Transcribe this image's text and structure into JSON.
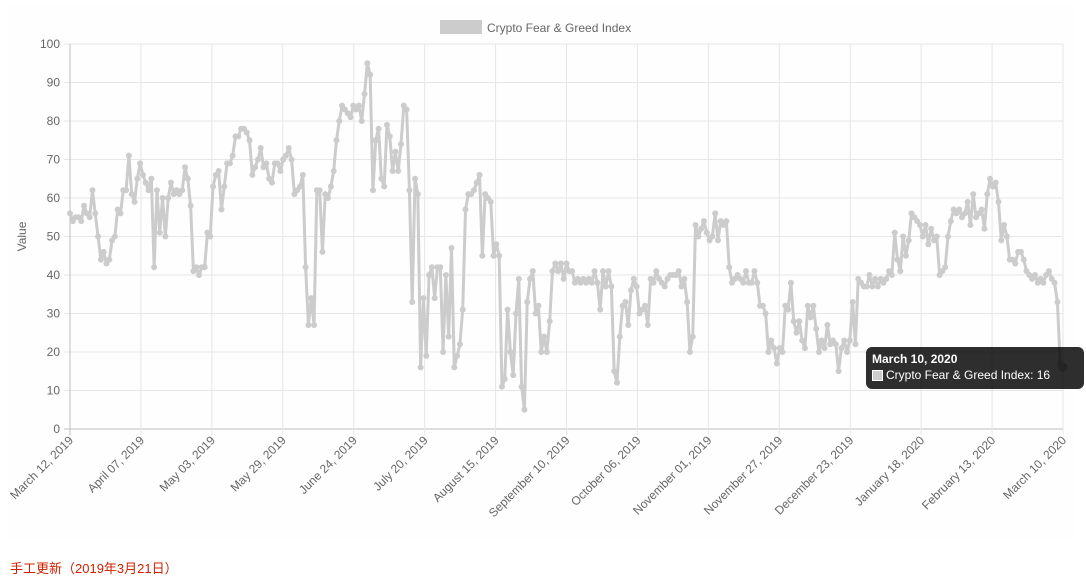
{
  "chart_data": {
    "type": "line",
    "title": "",
    "ylabel": "Value",
    "xlabel": "",
    "ylim": [
      0,
      100
    ],
    "y_ticks": [
      0,
      10,
      20,
      30,
      40,
      50,
      60,
      70,
      80,
      90,
      100
    ],
    "x_tick_labels": [
      "March 12, 2019",
      "April 07, 2019",
      "May 03, 2019",
      "May 29, 2019",
      "June 24, 2019",
      "July 20, 2019",
      "August 15, 2019",
      "September 10, 2019",
      "October 06, 2019",
      "November 01, 2019",
      "November 27, 2019",
      "December 23, 2019",
      "January 18, 2020",
      "February 13, 2020",
      "March 10, 2020"
    ],
    "grid": true,
    "legend_position": "top",
    "series": [
      {
        "name": "Crypto Fear & Greed Index",
        "color": "#cccccc",
        "values": [
          56,
          54,
          55,
          55,
          54,
          58,
          56,
          55,
          62,
          56,
          50,
          44,
          46,
          43,
          44,
          49,
          50,
          57,
          56,
          62,
          62,
          71,
          61,
          59,
          65,
          69,
          66,
          64,
          62,
          65,
          42,
          62,
          51,
          60,
          50,
          60,
          64,
          61,
          62,
          61,
          62,
          68,
          65,
          58,
          41,
          42,
          40,
          42,
          42,
          51,
          50,
          63,
          66,
          67,
          57,
          63,
          69,
          69,
          71,
          76,
          76,
          78,
          78,
          77,
          75,
          66,
          68,
          70,
          73,
          68,
          69,
          65,
          64,
          69,
          69,
          67,
          70,
          71,
          73,
          70,
          61,
          62,
          63,
          66,
          42,
          27,
          34,
          27,
          62,
          62,
          46,
          61,
          60,
          63,
          67,
          75,
          80,
          84,
          83,
          82,
          81,
          84,
          83,
          84,
          80,
          87,
          95,
          92,
          62,
          75,
          78,
          65,
          63,
          79,
          76,
          67,
          72,
          67,
          74,
          84,
          83,
          62,
          33,
          65,
          61,
          16,
          34,
          19,
          40,
          42,
          34,
          42,
          42,
          20,
          40,
          24,
          47,
          16,
          19,
          22,
          31,
          57,
          61,
          61,
          62,
          64,
          66,
          45,
          61,
          60,
          59,
          45,
          48,
          45,
          11,
          13,
          31,
          20,
          14,
          30,
          39,
          11,
          5,
          33,
          39,
          41,
          30,
          32,
          20,
          24,
          20,
          28,
          41,
          43,
          41,
          43,
          39,
          43,
          41,
          41,
          38,
          39,
          38,
          39,
          38,
          39,
          38,
          41,
          38,
          31,
          41,
          37,
          41,
          37,
          15,
          12,
          24,
          32,
          33,
          27,
          36,
          39,
          37,
          30,
          31,
          32,
          27,
          39,
          38,
          41,
          39,
          38,
          37,
          39,
          40,
          40,
          40,
          41,
          37,
          39,
          33,
          20,
          24,
          53,
          50,
          52,
          54,
          51,
          49,
          50,
          56,
          49,
          54,
          53,
          54,
          42,
          38,
          39,
          40,
          39,
          38,
          41,
          38,
          38,
          41,
          38,
          32,
          32,
          30,
          20,
          23,
          21,
          17,
          21,
          20,
          32,
          31,
          38,
          28,
          25,
          28,
          23,
          21,
          32,
          29,
          32,
          26,
          20,
          23,
          21,
          27,
          22,
          23,
          22,
          15,
          21,
          23,
          20,
          23,
          33,
          22,
          39,
          38,
          37,
          37,
          40,
          37,
          39,
          37,
          39,
          38,
          39,
          41,
          40,
          51,
          44,
          41,
          50,
          45,
          49,
          56,
          55,
          54,
          53,
          50,
          53,
          48,
          52,
          49,
          50,
          40,
          41,
          42,
          50,
          54,
          57,
          56,
          57,
          55,
          56,
          59,
          53,
          61,
          55,
          56,
          57,
          52,
          61,
          65,
          63,
          64,
          59,
          49,
          53,
          50,
          44,
          44,
          43,
          46,
          46,
          44,
          41,
          40,
          39,
          40,
          38,
          39,
          38,
          40,
          41,
          39,
          38,
          33,
          17,
          16
        ],
        "highlight": {
          "label": "March 10, 2020",
          "value": 16
        }
      }
    ]
  },
  "tooltip": {
    "title": "March 10, 2020",
    "text": "Crypto Fear & Greed Index: 16"
  },
  "footer": {
    "text": "手工更新（2019年3月21日）"
  }
}
